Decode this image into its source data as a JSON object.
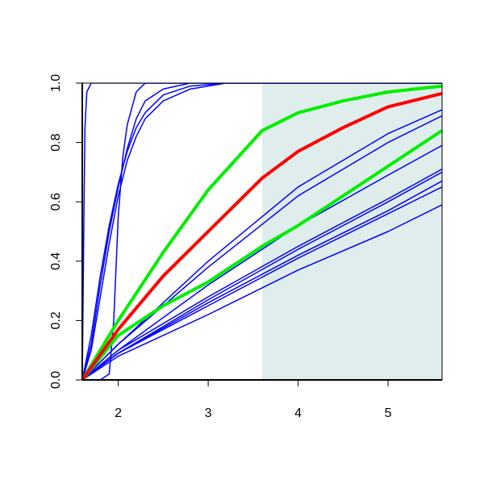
{
  "chart_data": {
    "type": "line",
    "xlim": [
      1.6,
      5.6
    ],
    "xticks": [
      2,
      3,
      4,
      5
    ],
    "ylim": [
      0,
      1
    ],
    "yticks": [
      {
        "value": 0,
        "label": "0.0"
      },
      0.2,
      0.4,
      0.6,
      0.8,
      {
        "value": 1,
        "label": "1.0"
      }
    ],
    "shaded_xrange": [
      3.6,
      5.6
    ],
    "shade_color": "#e0eded",
    "series": [
      {
        "color": "#0000ff",
        "line_width": 1.5,
        "x": [
          1.6,
          1.61,
          1.62,
          1.63,
          1.65,
          1.7,
          5.6
        ],
        "values": [
          0,
          0.3,
          0.6,
          0.85,
          0.97,
          1,
          1
        ]
      },
      {
        "color": "#0000ff",
        "line_width": 1.5,
        "x": [
          1.6,
          1.8,
          1.9,
          1.95,
          2.0,
          2.05,
          2.1,
          2.2,
          2.3,
          5.6
        ],
        "values": [
          0,
          0,
          0.02,
          0.2,
          0.55,
          0.75,
          0.86,
          0.97,
          1,
          1
        ]
      },
      {
        "color": "#0000ff",
        "line_width": 1.5,
        "x": [
          1.6,
          1.7,
          1.8,
          1.9,
          2.0,
          2.1,
          2.2,
          2.3,
          2.5,
          2.8,
          3.2,
          5.6
        ],
        "values": [
          0,
          0.15,
          0.35,
          0.52,
          0.66,
          0.77,
          0.85,
          0.9,
          0.96,
          0.99,
          1,
          1
        ]
      },
      {
        "color": "#0000ff",
        "line_width": 1.5,
        "x": [
          1.6,
          1.7,
          1.8,
          1.9,
          2.0,
          2.1,
          2.2,
          2.3,
          2.5,
          2.8,
          3.2,
          5.6
        ],
        "values": [
          0,
          0.1,
          0.28,
          0.46,
          0.62,
          0.74,
          0.82,
          0.88,
          0.94,
          0.98,
          1,
          1
        ]
      },
      {
        "color": "#0000ff",
        "line_width": 1.5,
        "x": [
          1.6,
          1.7,
          1.8,
          1.9,
          2.0,
          2.1,
          2.2,
          2.3,
          2.5,
          2.8,
          3.2,
          5.6
        ],
        "values": [
          0,
          0.12,
          0.32,
          0.5,
          0.65,
          0.78,
          0.88,
          0.94,
          0.98,
          1,
          1,
          1
        ]
      },
      {
        "color": "#0000ff",
        "line_width": 1.5,
        "x": [
          1.6,
          2,
          3,
          4,
          5,
          5.6
        ],
        "values": [
          0,
          0.12,
          0.4,
          0.65,
          0.83,
          0.91
        ]
      },
      {
        "color": "#0000ff",
        "line_width": 1.5,
        "x": [
          1.6,
          2,
          3,
          4,
          5,
          5.6
        ],
        "values": [
          0,
          0.12,
          0.38,
          0.62,
          0.8,
          0.89
        ]
      },
      {
        "color": "#0000ff",
        "line_width": 1.5,
        "x": [
          1.6,
          2,
          3,
          4,
          5,
          5.6
        ],
        "values": [
          0,
          0.1,
          0.32,
          0.52,
          0.69,
          0.79
        ]
      },
      {
        "color": "#0000ff",
        "line_width": 1.5,
        "x": [
          1.6,
          2,
          3,
          4,
          5,
          5.6
        ],
        "values": [
          0,
          0.1,
          0.28,
          0.45,
          0.61,
          0.71
        ]
      },
      {
        "color": "#0000ff",
        "line_width": 1.5,
        "x": [
          1.6,
          2,
          3,
          4,
          5,
          5.6
        ],
        "values": [
          0,
          0.09,
          0.27,
          0.44,
          0.6,
          0.7
        ]
      },
      {
        "color": "#0000ff",
        "line_width": 1.5,
        "x": [
          1.6,
          2,
          3,
          4,
          5,
          5.6
        ],
        "values": [
          0,
          0.09,
          0.26,
          0.42,
          0.57,
          0.67
        ]
      },
      {
        "color": "#0000ff",
        "line_width": 1.5,
        "x": [
          1.6,
          2,
          3,
          4,
          5,
          5.6
        ],
        "values": [
          0,
          0.09,
          0.25,
          0.41,
          0.56,
          0.65
        ]
      },
      {
        "color": "#0000ff",
        "line_width": 1.5,
        "x": [
          1.6,
          2,
          3,
          4,
          5,
          5.6
        ],
        "values": [
          0,
          0.08,
          0.22,
          0.37,
          0.5,
          0.59
        ]
      },
      {
        "color": "#00ee00",
        "line_width": 4,
        "x": [
          1.6,
          2,
          2.5,
          3,
          3.6,
          4,
          4.5,
          5,
          5.6
        ],
        "values": [
          0,
          0.15,
          0.25,
          0.33,
          0.45,
          0.52,
          0.62,
          0.72,
          0.84
        ]
      },
      {
        "color": "#00ee00",
        "line_width": 4,
        "x": [
          1.6,
          2,
          2.5,
          3,
          3.6,
          4,
          4.5,
          5,
          5.6
        ],
        "values": [
          0,
          0.2,
          0.43,
          0.64,
          0.84,
          0.9,
          0.94,
          0.97,
          0.99
        ]
      },
      {
        "color": "#ff0000",
        "line_width": 4,
        "x": [
          1.6,
          2,
          2.5,
          3,
          3.6,
          4,
          4.5,
          5,
          5.6
        ],
        "values": [
          0,
          0.17,
          0.35,
          0.5,
          0.68,
          0.77,
          0.85,
          0.92,
          0.965
        ]
      }
    ]
  }
}
